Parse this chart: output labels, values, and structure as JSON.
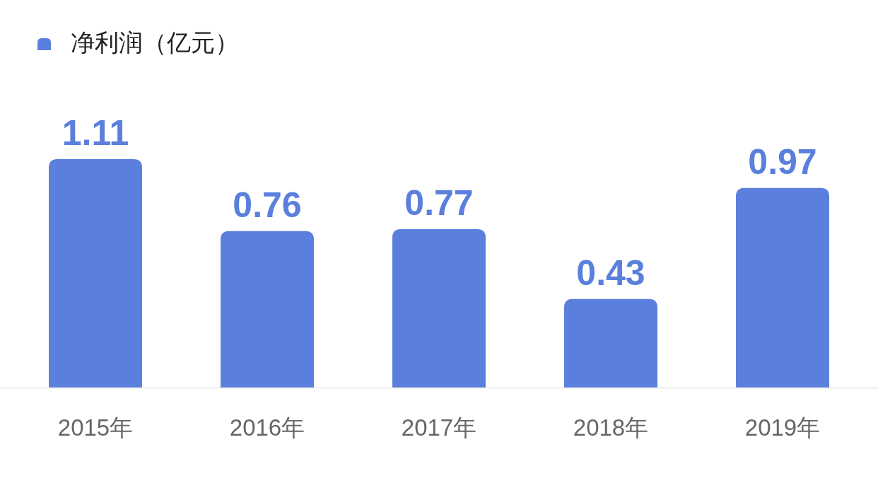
{
  "chart_data": {
    "type": "bar",
    "categories": [
      "2015年",
      "2016年",
      "2017年",
      "2018年",
      "2019年"
    ],
    "series": [
      {
        "name": "净利润（亿元）",
        "color": "#5a7fdc",
        "values": [
          1.11,
          0.76,
          0.77,
          0.43,
          0.97
        ]
      }
    ],
    "data_labels": true,
    "legend": "top left"
  }
}
